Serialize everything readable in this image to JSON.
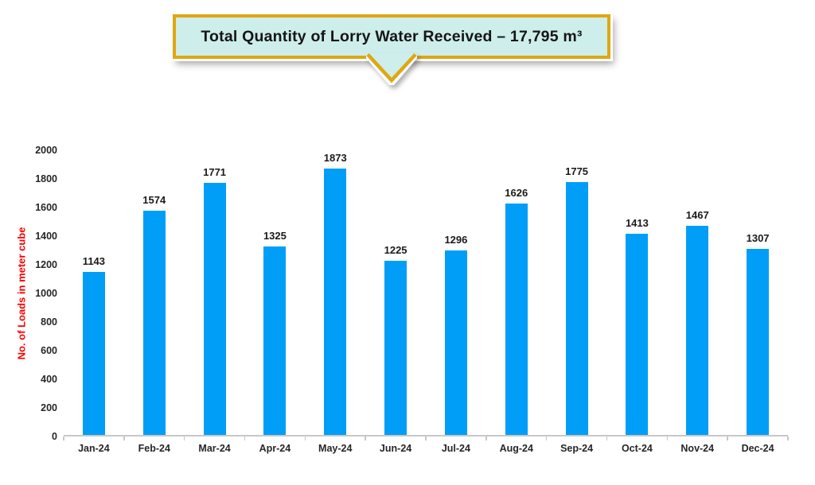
{
  "callout": {
    "title": "Total Quantity of Lorry Water Received – 17,795 m³"
  },
  "chart_data": {
    "type": "bar",
    "title": "Total Quantity of Lorry Water Received – 17,795 m³",
    "total_label": "17,795 m³",
    "categories": [
      "Jan-24",
      "Feb-24",
      "Mar-24",
      "Apr-24",
      "May-24",
      "Jun-24",
      "Jul-24",
      "Aug-24",
      "Sep-24",
      "Oct-24",
      "Nov-24",
      "Dec-24"
    ],
    "values": [
      1143,
      1574,
      1771,
      1325,
      1873,
      1225,
      1296,
      1626,
      1775,
      1413,
      1467,
      1307
    ],
    "xlabel": "",
    "ylabel": "No. of Loads in meter cube",
    "ylim": [
      0,
      2000
    ],
    "yticks": [
      0,
      200,
      400,
      600,
      800,
      1000,
      1200,
      1400,
      1600,
      1800,
      2000
    ],
    "grid": false,
    "legend": "none",
    "data_labels": true
  },
  "colors": {
    "bar": "#009EF7",
    "ylabel_text": "#FF0000",
    "axis_line": "#C8C8C8",
    "value_text": "#1A1A1A",
    "callout_fill": "#CDEEEB",
    "callout_border": "#DFA712"
  }
}
